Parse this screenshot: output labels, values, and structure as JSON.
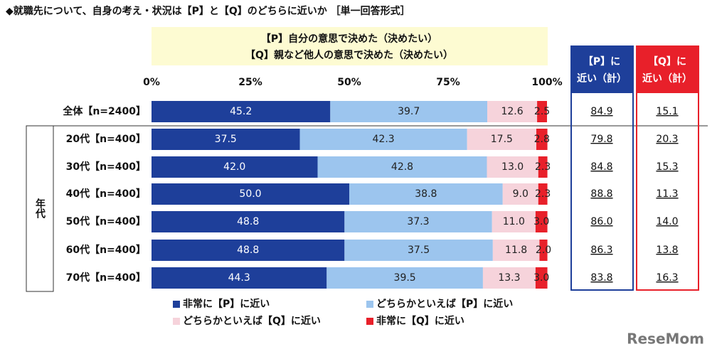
{
  "chart_data": {
    "type": "stacked-bar-horizontal",
    "title": "◆就職先について、自身の考え・状況は【P】と【Q】のどちらに近いか ［単一回答形式］",
    "note_lines": [
      "【P】自分の意思で決めた（決めたい）",
      "【Q】親など他人の意思で決めた（決めたい）"
    ],
    "group_label": "年代",
    "categories": [
      "全体【n=2400】",
      "20代【n=400】",
      "30代【n=400】",
      "40代【n=400】",
      "50代【n=400】",
      "60代【n=400】",
      "70代【n=400】"
    ],
    "xlim": [
      0,
      100
    ],
    "xticks": [
      {
        "value": 0,
        "label": "0%"
      },
      {
        "value": 25,
        "label": "25%"
      },
      {
        "value": 50,
        "label": "50%"
      },
      {
        "value": 75,
        "label": "75%"
      },
      {
        "value": 100,
        "label": "100%"
      }
    ],
    "series": [
      {
        "name": "非常に【P】に近い",
        "color": "#1e3f9a",
        "values": [
          45.2,
          37.5,
          42.0,
          50.0,
          48.8,
          48.8,
          44.3
        ],
        "value_labels": [
          "45.2",
          "37.5",
          "42.0",
          "50.0",
          "48.8",
          "48.8",
          "44.3"
        ]
      },
      {
        "name": "どちらかといえば【P】に近い",
        "color": "#9cc5ee",
        "values": [
          39.7,
          42.3,
          42.8,
          38.8,
          37.3,
          37.5,
          39.5
        ],
        "value_labels": [
          "39.7",
          "42.3",
          "42.8",
          "38.8",
          "37.3",
          "37.5",
          "39.5"
        ]
      },
      {
        "name": "どちらかといえば【Q】に近い",
        "color": "#f6d3db",
        "values": [
          12.6,
          17.5,
          13.0,
          9.0,
          11.0,
          11.8,
          13.3
        ],
        "value_labels": [
          "12.6",
          "17.5",
          "13.0",
          "9.0",
          "11.0",
          "11.8",
          "13.3"
        ]
      },
      {
        "name": "非常に【Q】に近い",
        "color": "#e8202a",
        "values": [
          2.5,
          2.8,
          2.3,
          2.3,
          3.0,
          2.0,
          3.0
        ],
        "value_labels": [
          "2.5",
          "2.8",
          "2.3",
          "2.3",
          "3.0",
          "2.0",
          "3.0"
        ]
      }
    ],
    "totals": [
      {
        "name": [
          "【P】に",
          "近い（計）"
        ],
        "color": "#1e3f9a",
        "values": [
          84.9,
          79.8,
          84.8,
          88.8,
          86.0,
          86.3,
          83.8
        ],
        "value_labels": [
          "84.9",
          "79.8",
          "84.8",
          "88.8",
          "86.0",
          "86.3",
          "83.8"
        ]
      },
      {
        "name": [
          "【Q】に",
          "近い（計）"
        ],
        "color": "#e8202a",
        "values": [
          15.1,
          20.3,
          15.3,
          11.3,
          14.0,
          13.8,
          16.3
        ],
        "value_labels": [
          "15.1",
          "20.3",
          "15.3",
          "11.3",
          "14.0",
          "13.8",
          "16.3"
        ]
      }
    ],
    "watermark": "ReseMom"
  }
}
